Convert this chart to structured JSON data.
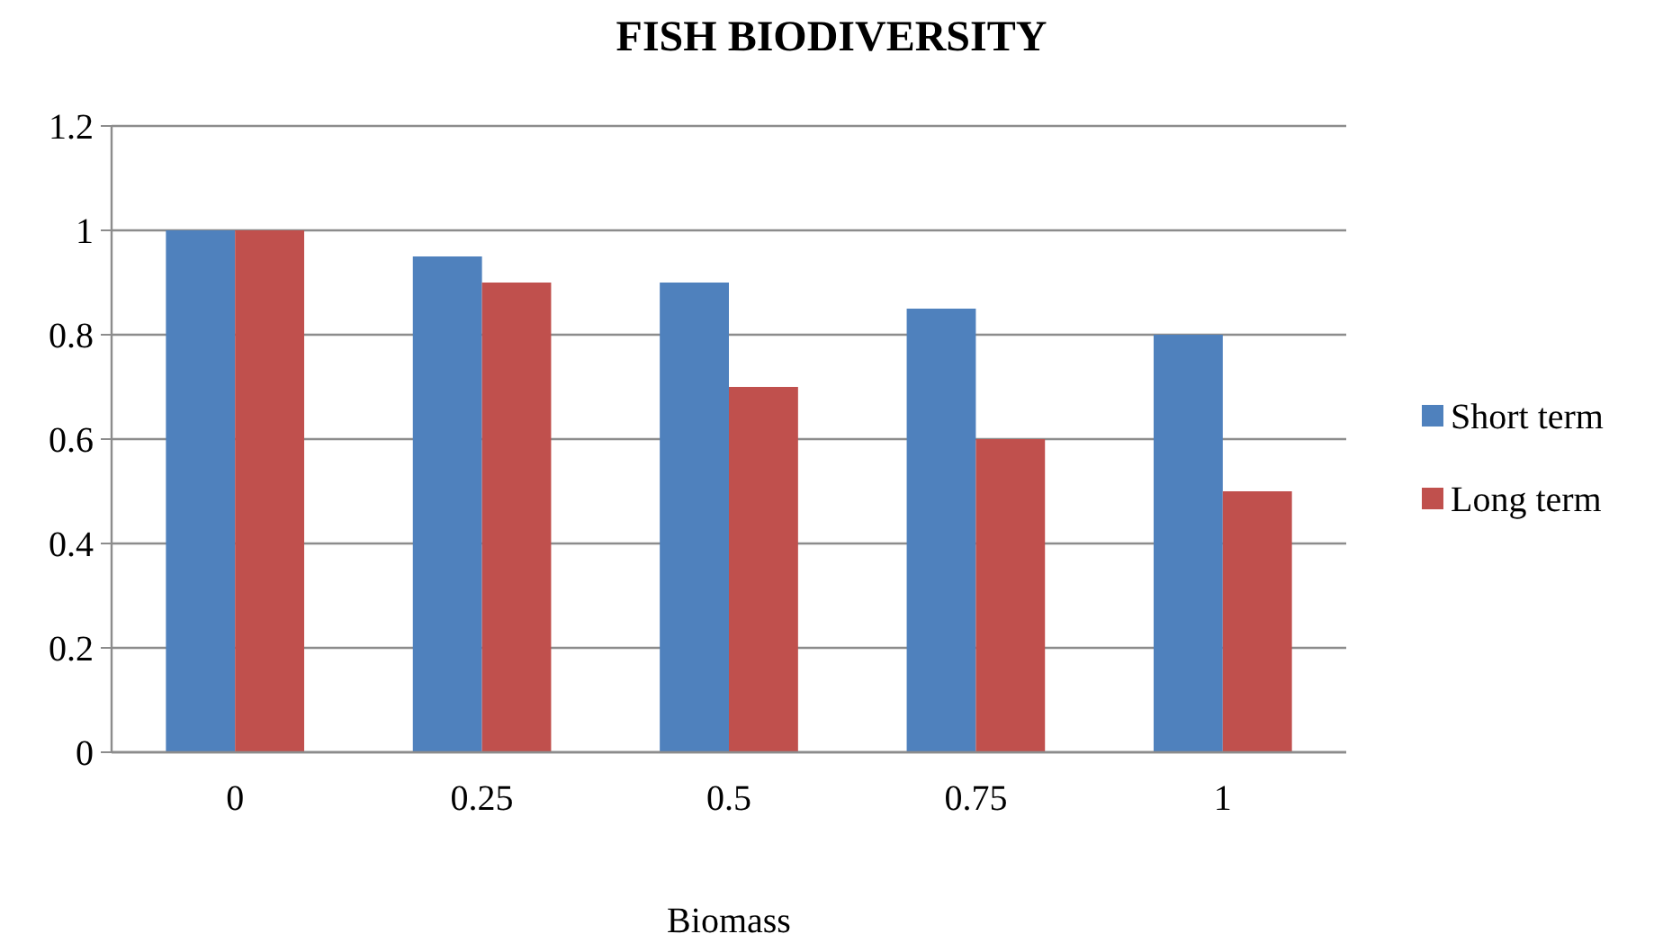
{
  "chart_data": {
    "type": "bar",
    "title": "FISH BIODIVERSITY",
    "xlabel": "Biomass",
    "categories": [
      "0",
      "0.25",
      "0.5",
      "0.75",
      "1"
    ],
    "series": [
      {
        "name": "Short term",
        "color": "#4f81bd",
        "values": [
          1,
          0.95,
          0.9,
          0.85,
          0.8
        ]
      },
      {
        "name": "Long term",
        "color": "#c0504d",
        "values": [
          1,
          0.9,
          0.7,
          0.6,
          0.5
        ]
      }
    ],
    "ylim": [
      0,
      1.2
    ],
    "yticks": [
      0,
      0.2,
      0.4,
      0.6,
      0.8,
      1,
      1.2
    ],
    "grid": "y",
    "legend": "right"
  }
}
